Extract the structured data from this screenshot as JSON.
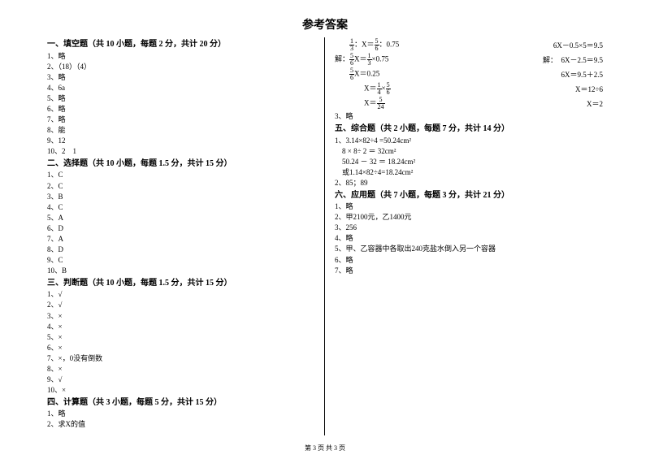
{
  "title": "参考答案",
  "footer": "第 3 页 共 3 页",
  "sec1": {
    "header": "一、填空题（共 10 小题，每题 2 分，共计 20 分）",
    "items": [
      "1、略",
      "2、（18）（4）",
      "3、略",
      "4、6a",
      "5、略",
      "6、略",
      "7、略",
      "8、能",
      "9、12",
      "10、2　1"
    ]
  },
  "sec2": {
    "header": "二、选择题（共 10 小题，每题 1.5 分，共计 15 分）",
    "items": [
      "1、C",
      "2、C",
      "3、B",
      "4、C",
      "5、A",
      "6、D",
      "7、A",
      "8、D",
      "9、C",
      "10、B"
    ]
  },
  "sec3": {
    "header": "三、判断题（共 10 小题，每题 1.5 分，共计 15 分）",
    "items": [
      "1、√",
      "2、√",
      "3、×",
      "4、×",
      "5、×",
      "6、×",
      "7、×，0没有倒数",
      "8、×",
      "9、√",
      "10、×"
    ]
  },
  "sec4": {
    "header": "四、计算题（共 3 小题，每题 5 分，共计 15 分）",
    "items": [
      "1、略",
      "2、求X的值"
    ]
  },
  "math": {
    "r1a_pre": "：X＝",
    "r1a_post": "：0.75",
    "r1b": "6X－0.5×5＝9.5",
    "r2a_pre": "解：",
    "r2a_mid": "X＝",
    "r2a_post": "×0.75",
    "r2b": "解：　6X－2.5＝9.5",
    "r3a": "X＝0.25",
    "r3b": "6X＝9.5＋2.5",
    "r4a_pre": "X＝",
    "r4a_mid": "×",
    "r4b": "X＝12÷6",
    "r5a_pre": "X＝",
    "r5b": "X＝2",
    "f13n": "1",
    "f13d": "3",
    "f56n": "5",
    "f56d": "6",
    "f56n2": "5",
    "f56d2": "6",
    "f13n2": "1",
    "f13d2": "3",
    "f56n3": "5",
    "f56d3": "6",
    "f14n": "1",
    "f14d": "4",
    "f56n4": "5",
    "f56d4": "6",
    "f524n": "5",
    "f524d": "24"
  },
  "sec4_item3": "3、略",
  "sec5": {
    "header": "五、综合题（共 2 小题，每题 7 分，共计 14 分）",
    "items": [
      "1、3.14×82÷4 =50.24cm²",
      "　8 × 8÷ 2 ＝ 32cm²",
      "　50.24 － 32 ＝ 18.24cm²",
      "　或1.14×82÷4=18.24cm²",
      "2、85；89"
    ]
  },
  "sec6": {
    "header": "六、应用题（共 7 小题，每题 3 分，共计 21 分）",
    "items": [
      "1、略",
      "2、甲2100元，乙1400元",
      "3、256",
      "4、略",
      "5、甲、乙容器中各取出240克盐水倒入另一个容器",
      "6、略",
      "7、略"
    ]
  }
}
